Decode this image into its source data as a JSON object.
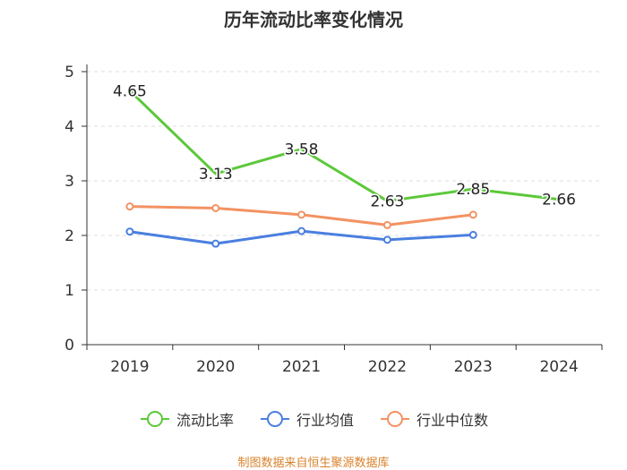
{
  "chart_data": {
    "type": "line",
    "title": "历年流动比率变化情况",
    "categories": [
      "2019",
      "2020",
      "2021",
      "2022",
      "2023",
      "2024"
    ],
    "ylim": [
      0,
      5
    ],
    "yticks": [
      0,
      1,
      2,
      3,
      4,
      5
    ],
    "grid": true,
    "legend_position": "bottom",
    "series": [
      {
        "name": "流动比率",
        "color": "#5cc83a",
        "values": [
          4.65,
          3.13,
          3.58,
          2.63,
          2.85,
          2.66
        ],
        "labels": [
          "4.65",
          "3.13",
          "3.58",
          "2.63",
          "2.85",
          "2.66"
        ]
      },
      {
        "name": "行业均值",
        "color": "#4a7fe0",
        "values": [
          2.07,
          1.85,
          2.08,
          1.92,
          2.01,
          null
        ]
      },
      {
        "name": "行业中位数",
        "color": "#f39262",
        "values": [
          2.53,
          2.5,
          2.38,
          2.19,
          2.38,
          null
        ]
      }
    ]
  },
  "source": "制图数据来自恒生聚源数据库"
}
